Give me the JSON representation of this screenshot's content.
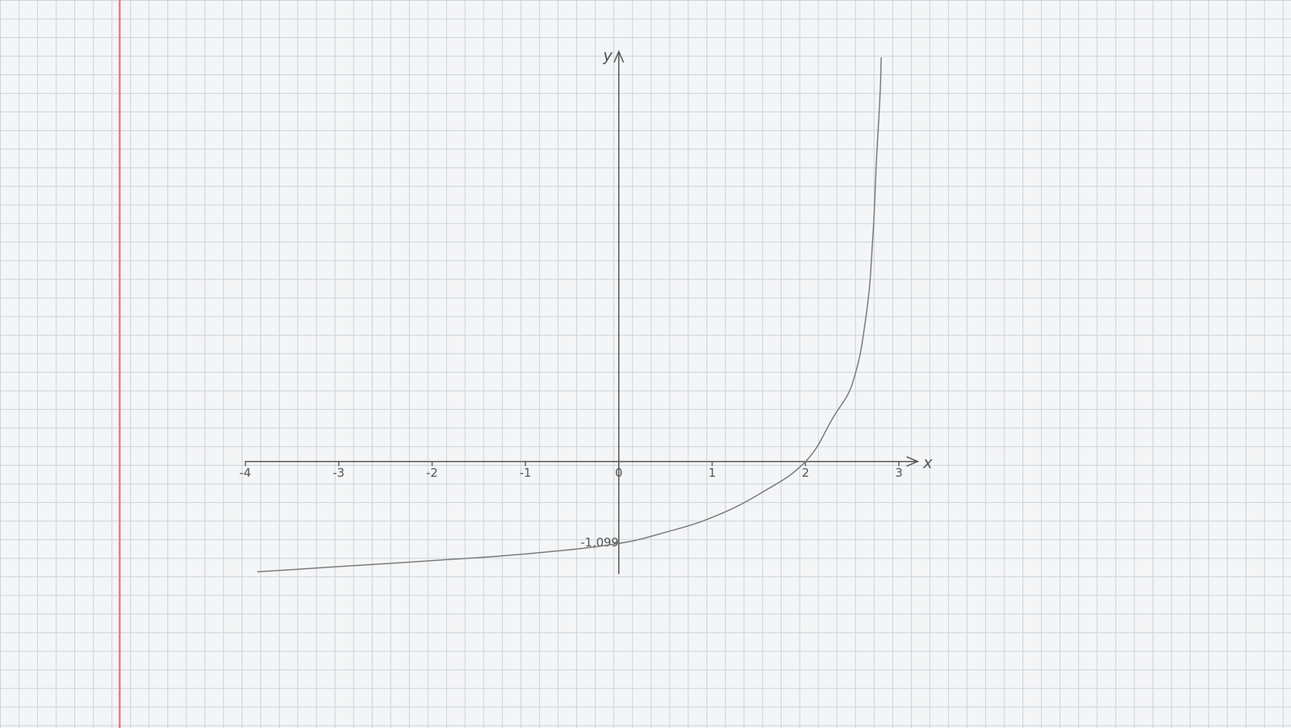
{
  "chart_data": {
    "type": "line",
    "x_label": "x",
    "y_label": "y",
    "x": [
      -3.87,
      -3,
      -2,
      -1,
      0,
      0.5,
      1,
      1.5,
      2,
      2.3,
      2.5,
      2.65,
      2.72,
      2.76,
      2.8,
      2.81
    ],
    "values": [
      -1.48,
      -1.41,
      -1.33,
      -1.24,
      -1.099,
      -0.95,
      -0.75,
      -0.44,
      0,
      0.6,
      1.04,
      1.97,
      3.0,
      4.05,
      4.98,
      5.42
    ],
    "color": "#7a7a7a",
    "xlim": [
      -4,
      3.2
    ],
    "xticks": [
      -4,
      -3,
      -2,
      -1,
      0,
      1,
      2,
      3
    ],
    "ylim": [
      -1.5,
      5.5
    ],
    "yticks": [
      {
        "value": -1.099,
        "label": "-1,099"
      }
    ],
    "grid": false,
    "marker": "none",
    "line_style": "solid"
  }
}
